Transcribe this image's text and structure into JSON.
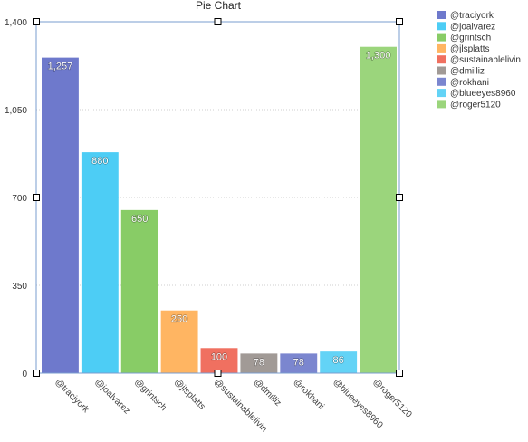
{
  "chart_data": {
    "type": "bar",
    "title": "Pie Chart",
    "categories": [
      "@traciyork",
      "@joalvarez",
      "@grintsch",
      "@jlsplatts",
      "@sustainablelivin",
      "@dmilliz",
      "@rokhani",
      "@blueeyes8960",
      "@roger5120"
    ],
    "values": [
      1257,
      880,
      650,
      250,
      100,
      78,
      78,
      86,
      1300
    ],
    "data_labels": [
      "1,257",
      "880",
      "650",
      "250",
      "100",
      "78",
      "78",
      "86",
      "1,300"
    ],
    "colors": [
      "#6e79cc",
      "#4dcdf5",
      "#88cc66",
      "#ffb562",
      "#f07060",
      "#a19a96",
      "#7b86cf",
      "#63d3f6",
      "#9bd57c"
    ],
    "ylim": [
      0,
      1400
    ],
    "yticks": [
      0,
      350,
      700,
      1050,
      1400
    ],
    "ytick_labels": [
      "0",
      "350",
      "700",
      "1,050",
      "1,400"
    ],
    "grid": true,
    "legend": "right",
    "selected": true
  }
}
